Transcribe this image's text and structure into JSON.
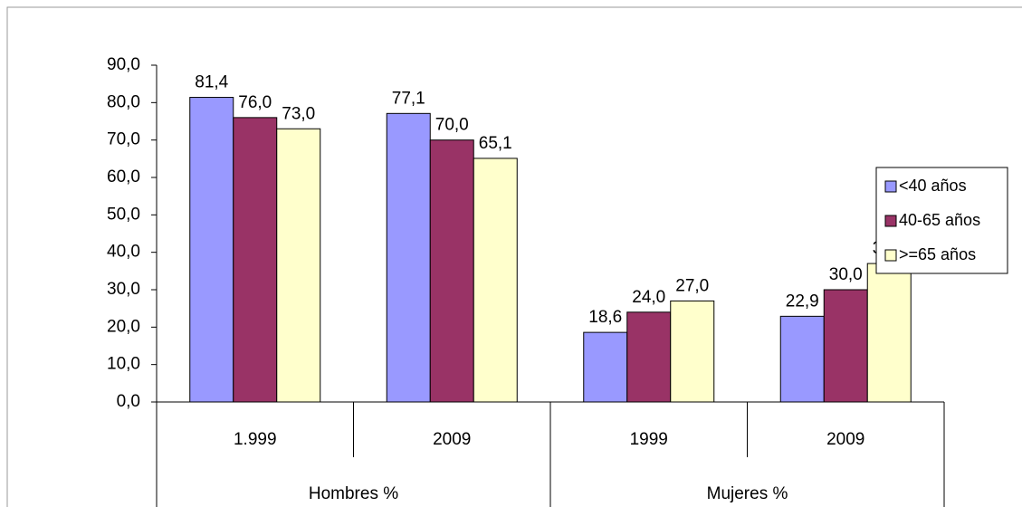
{
  "chart_data": {
    "type": "bar",
    "categories": [
      "1.999",
      "2009",
      "1999",
      "2009"
    ],
    "category_groups": [
      "Hombres %",
      "Mujeres %"
    ],
    "series": [
      {
        "name": "<40 años",
        "color": "#9999ff",
        "values": [
          81.4,
          77.1,
          18.6,
          22.9
        ],
        "value_labels": [
          "81,4",
          "77,1",
          "18,6",
          "22,9"
        ]
      },
      {
        "name": "40-65 años",
        "color": "#993366",
        "values": [
          76.0,
          70.0,
          24.0,
          30.0
        ],
        "value_labels": [
          "76,0",
          "70,0",
          "24,0",
          "30,0"
        ]
      },
      {
        "name": ">=65 años",
        "color": "#ffffcc",
        "values": [
          73.0,
          65.1,
          27.0,
          37.0
        ],
        "value_labels": [
          "73,0",
          "65,1",
          "27,0",
          "37,0"
        ]
      }
    ],
    "ylim": [
      0,
      90
    ],
    "yticks": [
      {
        "value": 0,
        "label": "0,0"
      },
      {
        "value": 10,
        "label": "10,0"
      },
      {
        "value": 20,
        "label": "20,0"
      },
      {
        "value": 30,
        "label": "30,0"
      },
      {
        "value": 40,
        "label": "40,0"
      },
      {
        "value": 50,
        "label": "50,0"
      },
      {
        "value": 60,
        "label": "60,0"
      },
      {
        "value": 70,
        "label": "70,0"
      },
      {
        "value": 80,
        "label": "80,0"
      },
      {
        "value": 90,
        "label": "90,0"
      }
    ],
    "legend": "right"
  }
}
